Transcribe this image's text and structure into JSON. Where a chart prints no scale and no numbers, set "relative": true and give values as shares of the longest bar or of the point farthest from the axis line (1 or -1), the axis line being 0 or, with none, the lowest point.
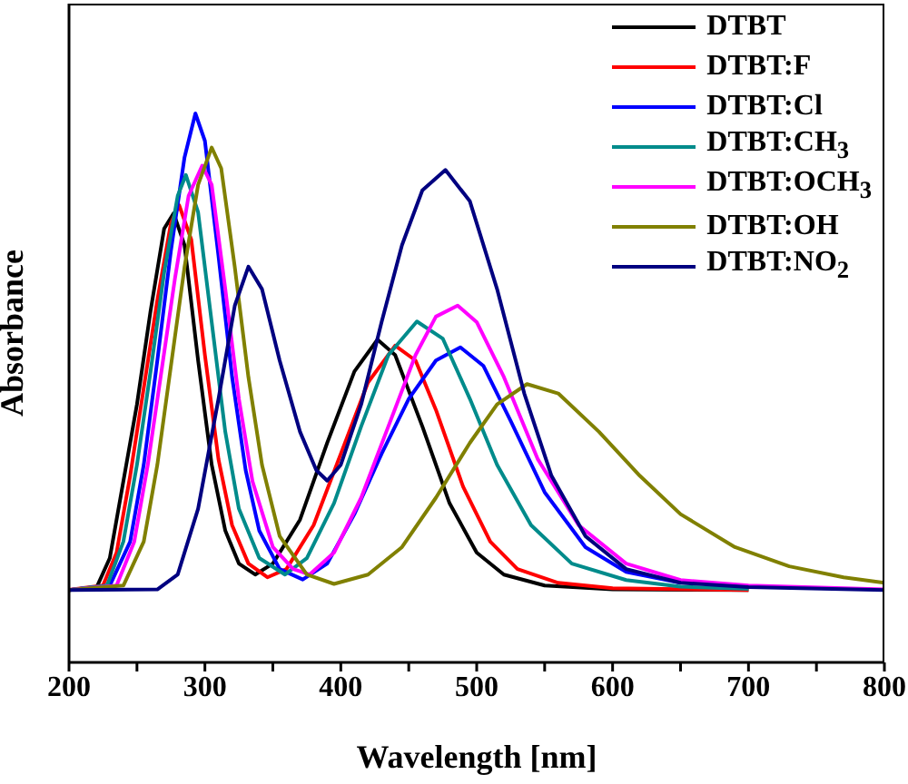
{
  "chart_data": {
    "type": "line",
    "relative": true,
    "xlabel": "Wavelength [nm]",
    "ylabel": "Absorbance",
    "xlim": [
      200,
      800
    ],
    "xticks": [
      200,
      {
        "value": 250,
        "label": null
      },
      300,
      {
        "value": 350,
        "label": null
      },
      400,
      {
        "value": 450,
        "label": null
      },
      500,
      {
        "value": 550,
        "label": null
      },
      600,
      {
        "value": 650,
        "label": null
      },
      700,
      {
        "value": 750,
        "label": null
      },
      800
    ],
    "legend": "top right",
    "marker": "none",
    "line_style": "solid",
    "grid": false,
    "series": [
      {
        "name": "DTBT",
        "color": "#000000",
        "x": [
          200,
          220,
          230,
          240,
          250,
          260,
          270,
          277,
          285,
          295,
          305,
          315,
          325,
          337,
          350,
          370,
          390,
          410,
          427,
          440,
          460,
          480,
          500,
          520,
          550,
          600,
          700
        ],
        "values": [
          0.132,
          0.135,
          0.19,
          0.33,
          0.47,
          0.64,
          0.79,
          0.818,
          0.76,
          0.55,
          0.36,
          0.24,
          0.18,
          0.16,
          0.18,
          0.26,
          0.4,
          0.53,
          0.588,
          0.56,
          0.43,
          0.29,
          0.2,
          0.16,
          0.14,
          0.133,
          0.132
        ]
      },
      {
        "name": "DTBT:F",
        "color": "#ff0000",
        "x": [
          200,
          225,
          235,
          245,
          255,
          265,
          275,
          281,
          290,
          300,
          310,
          320,
          332,
          346,
          360,
          380,
          400,
          420,
          440,
          455,
          470,
          490,
          510,
          530,
          560,
          600,
          700
        ],
        "values": [
          0.132,
          0.14,
          0.2,
          0.34,
          0.5,
          0.66,
          0.8,
          0.833,
          0.77,
          0.56,
          0.37,
          0.25,
          0.18,
          0.155,
          0.17,
          0.25,
          0.38,
          0.51,
          0.577,
          0.55,
          0.46,
          0.32,
          0.22,
          0.17,
          0.145,
          0.135,
          0.132
        ]
      },
      {
        "name": "DTBT:Cl",
        "color": "#0000ff",
        "x": [
          200,
          230,
          245,
          255,
          265,
          275,
          285,
          293,
          300,
          310,
          320,
          330,
          340,
          355,
          372,
          390,
          410,
          430,
          450,
          470,
          488,
          505,
          525,
          550,
          580,
          610,
          650
        ],
        "values": [
          0.132,
          0.14,
          0.22,
          0.36,
          0.55,
          0.75,
          0.92,
          1,
          0.95,
          0.74,
          0.52,
          0.35,
          0.24,
          0.17,
          0.151,
          0.18,
          0.27,
          0.38,
          0.48,
          0.55,
          0.574,
          0.54,
          0.44,
          0.31,
          0.21,
          0.165,
          0.145
        ]
      },
      {
        "name": "DTBT:CH$_{3}$",
        "color": "#008b8b",
        "x": [
          200,
          228,
          240,
          250,
          260,
          270,
          280,
          286,
          295,
          305,
          315,
          325,
          340,
          359,
          375,
          395,
          415,
          435,
          456,
          475,
          495,
          515,
          540,
          570,
          610,
          650,
          700
        ],
        "values": [
          0.132,
          0.14,
          0.22,
          0.36,
          0.53,
          0.71,
          0.85,
          0.888,
          0.82,
          0.62,
          0.42,
          0.28,
          0.19,
          0.16,
          0.19,
          0.29,
          0.43,
          0.56,
          0.621,
          0.59,
          0.48,
          0.36,
          0.25,
          0.18,
          0.15,
          0.138,
          0.134
        ]
      },
      {
        "name": "DTBT:OCH$_{3}$",
        "color": "#ff00ff",
        "x": [
          200,
          235,
          248,
          258,
          268,
          278,
          288,
          298,
          305,
          315,
          325,
          335,
          350,
          365,
          377,
          395,
          415,
          435,
          455,
          470,
          486,
          500,
          520,
          545,
          575,
          610,
          650,
          700,
          800
        ],
        "values": [
          0.132,
          0.14,
          0.22,
          0.36,
          0.53,
          0.7,
          0.85,
          0.905,
          0.87,
          0.68,
          0.48,
          0.33,
          0.21,
          0.17,
          0.16,
          0.2,
          0.3,
          0.43,
          0.56,
          0.63,
          0.65,
          0.62,
          0.52,
          0.37,
          0.25,
          0.18,
          0.15,
          0.14,
          0.133
        ]
      },
      {
        "name": "DTBT:OH",
        "color": "#808000",
        "x": [
          200,
          240,
          255,
          265,
          275,
          285,
          295,
          305,
          312,
          322,
          332,
          342,
          355,
          375,
          395,
          420,
          445,
          470,
          495,
          515,
          537,
          560,
          590,
          620,
          650,
          690,
          730,
          770,
          800
        ],
        "values": [
          0.132,
          0.14,
          0.22,
          0.36,
          0.54,
          0.72,
          0.87,
          0.938,
          0.9,
          0.72,
          0.52,
          0.36,
          0.23,
          0.16,
          0.143,
          0.16,
          0.21,
          0.3,
          0.4,
          0.47,
          0.507,
          0.49,
          0.42,
          0.34,
          0.27,
          0.21,
          0.175,
          0.155,
          0.145
        ]
      },
      {
        "name": "DTBT:NO$_{2}$",
        "color": "#000080",
        "x": [
          200,
          265,
          280,
          295,
          310,
          322,
          332,
          342,
          355,
          370,
          382,
          390,
          400,
          415,
          430,
          445,
          460,
          477,
          495,
          515,
          535,
          555,
          580,
          610,
          650,
          700,
          800
        ],
        "values": [
          0.132,
          0.133,
          0.16,
          0.28,
          0.48,
          0.65,
          0.721,
          0.68,
          0.55,
          0.42,
          0.35,
          0.331,
          0.36,
          0.47,
          0.62,
          0.76,
          0.86,
          0.897,
          0.84,
          0.68,
          0.49,
          0.34,
          0.23,
          0.17,
          0.145,
          0.137,
          0.132
        ]
      }
    ]
  }
}
